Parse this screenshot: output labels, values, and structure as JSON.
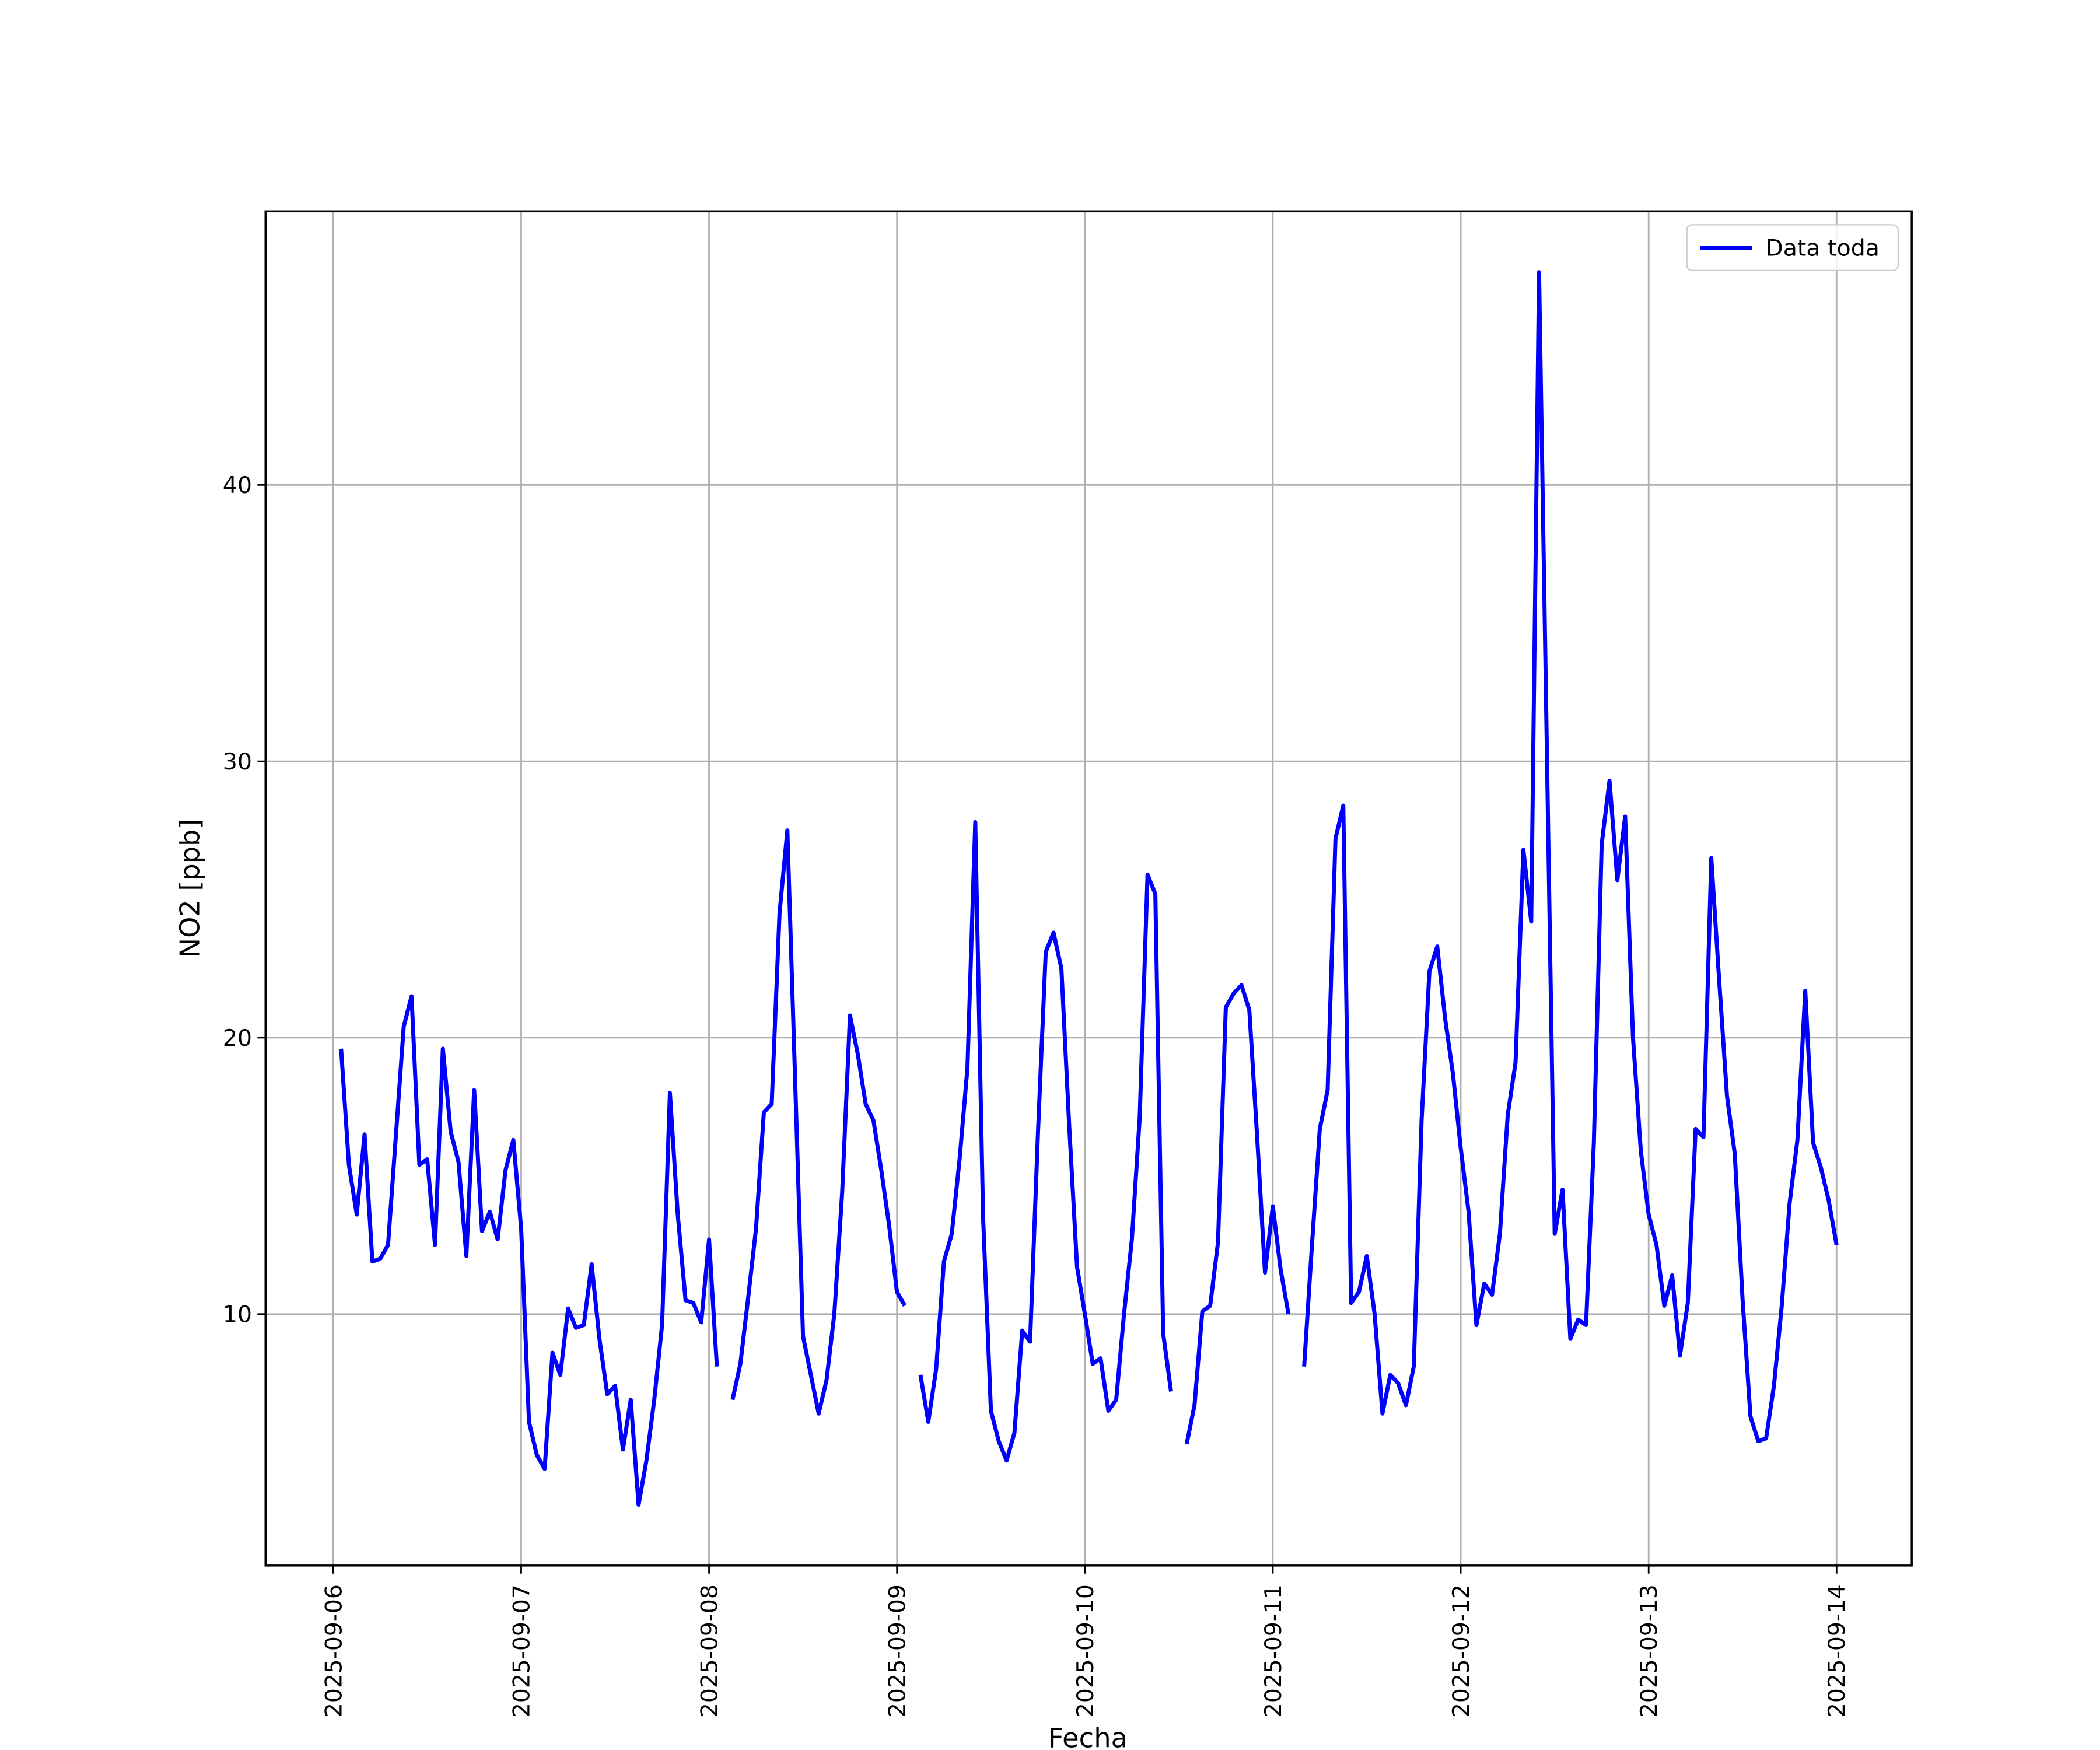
{
  "chart_data": {
    "type": "line",
    "xlabel": "Fecha",
    "ylabel": "NO2 [ppb]",
    "x": [
      "2025-09-06 01:00",
      "2025-09-06 02:00",
      "2025-09-06 03:00",
      "2025-09-06 04:00",
      "2025-09-06 05:00",
      "2025-09-06 06:00",
      "2025-09-06 07:00",
      "2025-09-06 09:00",
      "2025-09-06 10:00",
      "2025-09-06 11:00",
      "2025-09-06 12:00",
      "2025-09-06 13:00",
      "2025-09-06 14:00",
      "2025-09-06 15:00",
      "2025-09-06 16:00",
      "2025-09-06 17:00",
      "2025-09-06 18:00",
      "2025-09-06 19:00",
      "2025-09-06 20:00",
      "2025-09-06 21:00",
      "2025-09-06 22:00",
      "2025-09-06 23:00",
      "2025-09-07 00:00",
      "2025-09-07 01:00",
      "2025-09-07 02:00",
      "2025-09-07 03:00",
      "2025-09-07 04:00",
      "2025-09-07 05:00",
      "2025-09-07 06:00",
      "2025-09-07 07:00",
      "2025-09-07 08:00",
      "2025-09-07 09:00",
      "2025-09-07 10:00",
      "2025-09-07 11:00",
      "2025-09-07 12:00",
      "2025-09-07 13:00",
      "2025-09-07 14:00",
      "2025-09-07 15:00",
      "2025-09-07 16:00",
      "2025-09-07 17:00",
      "2025-09-07 18:00",
      "2025-09-07 19:00",
      "2025-09-07 20:00",
      "2025-09-07 21:00",
      "2025-09-07 22:00",
      "2025-09-07 23:00",
      "2025-09-08 00:00",
      "2025-09-08 01:00",
      "2025-09-08 02:00",
      "2025-09-08 03:00",
      "2025-09-08 04:00",
      "2025-09-08 05:00",
      "2025-09-08 06:00",
      "2025-09-08 07:00",
      "2025-09-08 08:00",
      "2025-09-08 09:00",
      "2025-09-08 10:00",
      "2025-09-08 11:00",
      "2025-09-08 12:00",
      "2025-09-08 13:00",
      "2025-09-08 14:00",
      "2025-09-08 15:00",
      "2025-09-08 16:00",
      "2025-09-08 17:00",
      "2025-09-08 18:00",
      "2025-09-08 19:00",
      "2025-09-08 20:00",
      "2025-09-08 21:00",
      "2025-09-08 22:00",
      "2025-09-08 23:00",
      "2025-09-09 00:00",
      "2025-09-09 01:00",
      "2025-09-09 02:00",
      "2025-09-09 03:00",
      "2025-09-09 04:00",
      "2025-09-09 05:00",
      "2025-09-09 06:00",
      "2025-09-09 07:00",
      "2025-09-09 08:00",
      "2025-09-09 09:00",
      "2025-09-09 10:00",
      "2025-09-09 11:00",
      "2025-09-09 12:00",
      "2025-09-09 13:00",
      "2025-09-09 14:00",
      "2025-09-09 15:00",
      "2025-09-09 16:00",
      "2025-09-09 17:00",
      "2025-09-09 18:00",
      "2025-09-09 19:00",
      "2025-09-09 20:00",
      "2025-09-09 21:00",
      "2025-09-09 22:00",
      "2025-09-09 23:00",
      "2025-09-10 00:00",
      "2025-09-10 01:00",
      "2025-09-10 02:00",
      "2025-09-10 03:00",
      "2025-09-10 04:00",
      "2025-09-10 05:00",
      "2025-09-10 06:00",
      "2025-09-10 07:00",
      "2025-09-10 08:00",
      "2025-09-10 09:00",
      "2025-09-10 10:00",
      "2025-09-10 11:00",
      "2025-09-10 12:00",
      "2025-09-10 13:00",
      "2025-09-10 14:00",
      "2025-09-10 15:00",
      "2025-09-10 16:00",
      "2025-09-10 17:00",
      "2025-09-10 18:00",
      "2025-09-10 19:00",
      "2025-09-10 20:00",
      "2025-09-10 21:00",
      "2025-09-10 22:00",
      "2025-09-10 23:00",
      "2025-09-11 00:00",
      "2025-09-11 01:00",
      "2025-09-11 02:00",
      "2025-09-11 03:00",
      "2025-09-11 04:00",
      "2025-09-11 05:00",
      "2025-09-11 06:00",
      "2025-09-11 07:00",
      "2025-09-11 08:00",
      "2025-09-11 09:00",
      "2025-09-11 10:00",
      "2025-09-11 11:00",
      "2025-09-11 12:00",
      "2025-09-11 13:00",
      "2025-09-11 14:00",
      "2025-09-11 15:00",
      "2025-09-11 16:00",
      "2025-09-11 17:00",
      "2025-09-11 18:00",
      "2025-09-11 19:00",
      "2025-09-11 20:00",
      "2025-09-11 21:00",
      "2025-09-11 22:00",
      "2025-09-11 23:00",
      "2025-09-12 00:00",
      "2025-09-12 01:00",
      "2025-09-12 02:00",
      "2025-09-12 03:00",
      "2025-09-12 04:00",
      "2025-09-12 05:00",
      "2025-09-12 06:00",
      "2025-09-12 07:00",
      "2025-09-12 08:00",
      "2025-09-12 09:00",
      "2025-09-12 10:00",
      "2025-09-12 11:00",
      "2025-09-12 12:00",
      "2025-09-12 13:00",
      "2025-09-12 14:00",
      "2025-09-12 15:00",
      "2025-09-12 16:00",
      "2025-09-12 17:00",
      "2025-09-12 18:00",
      "2025-09-12 19:00",
      "2025-09-12 20:00",
      "2025-09-12 21:00",
      "2025-09-12 22:00",
      "2025-09-12 23:00",
      "2025-09-13 00:00",
      "2025-09-13 01:00",
      "2025-09-13 02:00",
      "2025-09-13 03:00",
      "2025-09-13 04:00",
      "2025-09-13 05:00",
      "2025-09-13 06:00",
      "2025-09-13 07:00",
      "2025-09-13 08:00",
      "2025-09-13 09:00",
      "2025-09-13 10:00",
      "2025-09-13 11:00",
      "2025-09-13 12:00",
      "2025-09-13 13:00",
      "2025-09-13 14:00",
      "2025-09-13 15:00",
      "2025-09-13 16:00",
      "2025-09-13 17:00",
      "2025-09-13 18:00",
      "2025-09-13 19:00",
      "2025-09-13 20:00",
      "2025-09-13 21:00",
      "2025-09-13 22:00",
      "2025-09-13 23:00",
      "2025-09-14 00:00"
    ],
    "series": [
      {
        "name": "Data toda",
        "color": "#0000ff",
        "values": [
          19.6,
          15.4,
          13.6,
          16.5,
          11.9,
          12.0,
          12.5,
          20.4,
          21.5,
          15.4,
          15.6,
          12.5,
          19.6,
          16.6,
          15.5,
          12.1,
          18.1,
          13.0,
          13.7,
          12.7,
          15.2,
          16.3,
          13.1,
          6.1,
          4.9,
          4.4,
          8.6,
          7.8,
          10.2,
          9.5,
          9.6,
          11.8,
          9.1,
          7.1,
          7.4,
          5.1,
          6.9,
          3.1,
          4.7,
          6.9,
          9.6,
          18.0,
          13.6,
          10.5,
          10.4,
          9.7,
          12.7,
          8.1,
          null,
          6.9,
          8.2,
          10.6,
          13.1,
          17.3,
          17.6,
          24.5,
          27.5,
          18.4,
          9.2,
          7.8,
          6.4,
          7.6,
          10.0,
          14.4,
          20.8,
          19.4,
          17.6,
          17.0,
          15.2,
          13.2,
          10.8,
          10.3,
          null,
          7.8,
          6.1,
          8.0,
          11.9,
          12.9,
          15.6,
          18.9,
          27.8,
          13.5,
          6.5,
          5.4,
          4.7,
          5.7,
          9.4,
          9.0,
          16.5,
          23.1,
          23.8,
          22.5,
          16.8,
          11.7,
          10.0,
          8.2,
          8.4,
          6.5,
          6.9,
          10.0,
          12.7,
          17.1,
          25.9,
          25.2,
          9.3,
          7.2,
          null,
          5.3,
          6.7,
          10.1,
          10.3,
          12.6,
          21.1,
          21.6,
          21.9,
          21.0,
          16.4,
          11.5,
          13.9,
          11.6,
          10.0,
          null,
          8.1,
          12.5,
          16.7,
          18.1,
          27.2,
          28.4,
          10.4,
          10.8,
          12.1,
          10.0,
          6.4,
          7.8,
          7.5,
          6.7,
          8.1,
          17.0,
          22.4,
          23.3,
          20.7,
          18.7,
          16.0,
          13.7,
          9.6,
          11.1,
          10.7,
          12.9,
          17.2,
          19.1,
          26.8,
          24.2,
          47.7,
          30.4,
          12.9,
          14.5,
          9.1,
          9.8,
          9.6,
          16.2,
          27.0,
          29.3,
          25.7,
          28.0,
          20.0,
          15.9,
          13.6,
          12.5,
          10.3,
          11.4,
          8.5,
          10.4,
          16.7,
          16.4,
          26.5,
          22.1,
          17.9,
          15.8,
          10.5,
          6.3,
          5.4,
          5.5,
          7.4,
          10.3,
          14.0,
          16.3,
          21.7,
          16.2,
          15.3,
          14.1,
          12.5
        ]
      }
    ],
    "xlim": [
      "2025-09-05 15:21",
      "2025-09-14 09:36"
    ],
    "xticks": [
      "2025-09-06",
      "2025-09-07",
      "2025-09-08",
      "2025-09-09",
      "2025-09-10",
      "2025-09-11",
      "2025-09-12",
      "2025-09-13",
      "2025-09-14"
    ],
    "ylim": [
      0.9,
      49.9
    ],
    "yticks": [
      10,
      20,
      30,
      40
    ],
    "grid": true,
    "legend": "upper right"
  }
}
